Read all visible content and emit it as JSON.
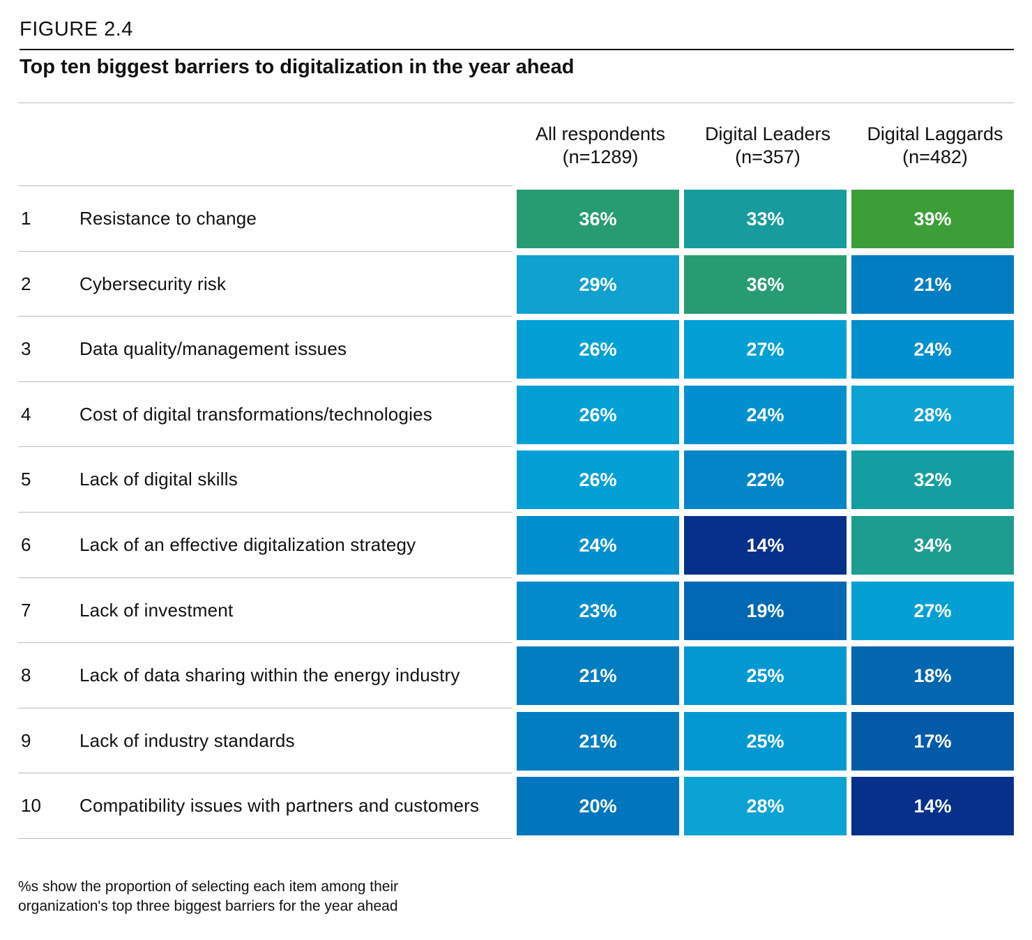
{
  "figure_label": "FIGURE 2.4",
  "chart_data": {
    "type": "table",
    "title": "Top ten biggest barriers to digitalization in the year ahead",
    "columns": [
      {
        "line1": "All respondents",
        "line2": "(n=1289)"
      },
      {
        "line1": "Digital Leaders",
        "line2": "(n=357)"
      },
      {
        "line1": "Digital Laggards",
        "line2": "(n=482)"
      }
    ],
    "rows": [
      {
        "rank": "1",
        "label": "Resistance to change",
        "values": [
          "36%",
          "33%",
          "39%"
        ],
        "colors": [
          "#279c70",
          "#179b9c",
          "#3b9e37"
        ]
      },
      {
        "rank": "2",
        "label": "Cybersecurity risk",
        "values": [
          "29%",
          "36%",
          "21%"
        ],
        "colors": [
          "#0fa1cf",
          "#279c70",
          "#017dc2"
        ]
      },
      {
        "rank": "3",
        "label": "Data quality/management issues",
        "values": [
          "26%",
          "27%",
          "24%"
        ],
        "colors": [
          "#03a0d6",
          "#03a0d6",
          "#028fcf"
        ]
      },
      {
        "rank": "4",
        "label": "Cost of digital transformations/technologies",
        "values": [
          "26%",
          "24%",
          "28%"
        ],
        "colors": [
          "#03a0d6",
          "#028fcf",
          "#0ba2d4"
        ]
      },
      {
        "rank": "5",
        "label": "Lack of digital skills",
        "values": [
          "26%",
          "22%",
          "32%"
        ],
        "colors": [
          "#03a0d6",
          "#0286c8",
          "#159ea2"
        ]
      },
      {
        "rank": "6",
        "label": "Lack of an effective digitalization strategy",
        "values": [
          "24%",
          "14%",
          "34%"
        ],
        "colors": [
          "#028fcf",
          "#06308a",
          "#1c9d8f"
        ]
      },
      {
        "rank": "7",
        "label": "Lack of investment",
        "values": [
          "23%",
          "19%",
          "27%"
        ],
        "colors": [
          "#028bcc",
          "#0169b3",
          "#03a0d6"
        ]
      },
      {
        "rank": "8",
        "label": "Lack of data sharing within the energy industry",
        "values": [
          "21%",
          "25%",
          "18%"
        ],
        "colors": [
          "#017dc2",
          "#0299d3",
          "#0266b1"
        ]
      },
      {
        "rank": "9",
        "label": "Lack of industry standards",
        "values": [
          "21%",
          "25%",
          "17%"
        ],
        "colors": [
          "#017dc2",
          "#0299d3",
          "#035aa9"
        ]
      },
      {
        "rank": "10",
        "label": "Compatibility issues with partners and customers",
        "values": [
          "20%",
          "28%",
          "14%"
        ],
        "colors": [
          "#0176bf",
          "#0ba2d4",
          "#06308a"
        ]
      }
    ]
  },
  "footnote": {
    "line1": "%s show the proportion of selecting each item among their",
    "line2": "organization's top three biggest barriers for the year ahead"
  }
}
